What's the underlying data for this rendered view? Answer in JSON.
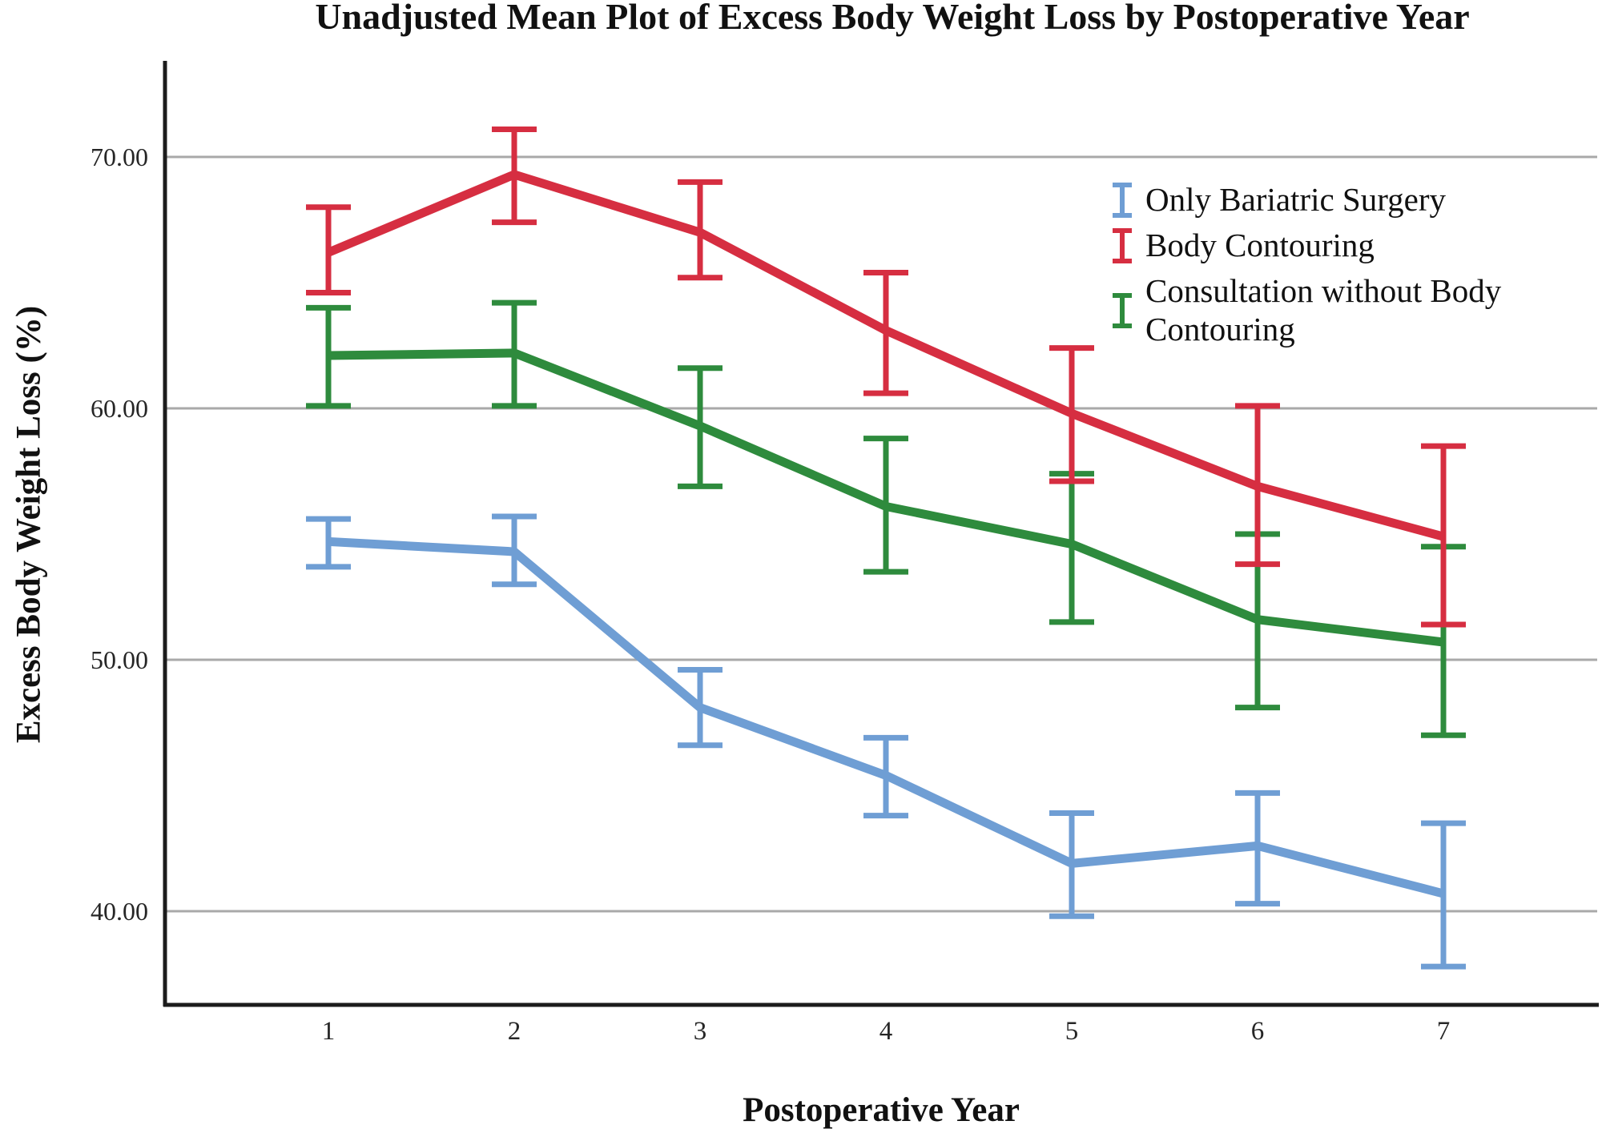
{
  "chart_data": {
    "type": "line",
    "title": "Unadjusted Mean Plot of Excess Body Weight Loss by Postoperative Year",
    "xlabel": "Postoperative Year",
    "ylabel": "Excess Body Weight Loss (%)",
    "x": [
      1,
      2,
      3,
      4,
      5,
      6,
      7
    ],
    "x_tick_labels": [
      "1",
      "2",
      "3",
      "4",
      "5",
      "6",
      "7"
    ],
    "y_tick_labels": [
      "70.00",
      "60.00",
      "50.00",
      "40.00"
    ],
    "y_tick_values": [
      70,
      60,
      50,
      40
    ],
    "ylim": [
      36,
      74
    ],
    "grid": "horizontal",
    "gridline_color": "#a9a9a9",
    "axis_color": "#1c1c1c",
    "legend_position": "upper-right-inside",
    "error_bars": true,
    "series": [
      {
        "name": "Only Bariatric Surgery",
        "color": "#6f9ed4",
        "values": [
          54.7,
          54.3,
          48.1,
          45.4,
          41.9,
          42.6,
          40.7
        ],
        "ci_low": [
          53.7,
          53.0,
          46.6,
          43.8,
          39.8,
          40.3,
          37.8
        ],
        "ci_high": [
          55.6,
          55.7,
          49.6,
          46.9,
          43.9,
          44.7,
          43.5
        ]
      },
      {
        "name": "Body Contouring",
        "color": "#d62e41",
        "values": [
          66.2,
          69.3,
          67.0,
          63.1,
          59.8,
          56.9,
          54.9
        ],
        "ci_low": [
          64.6,
          67.4,
          65.2,
          60.6,
          57.1,
          53.8,
          51.4
        ],
        "ci_high": [
          68.0,
          71.1,
          69.0,
          65.4,
          62.4,
          60.1,
          58.5
        ]
      },
      {
        "name": "Consultation without Body Contouring",
        "color": "#2e8b3d",
        "values": [
          62.1,
          62.2,
          59.3,
          56.1,
          54.6,
          51.6,
          50.7
        ],
        "ci_low": [
          60.1,
          60.1,
          56.9,
          53.5,
          51.5,
          48.1,
          47.0
        ],
        "ci_high": [
          64.0,
          64.2,
          61.6,
          58.8,
          57.4,
          55.0,
          54.5
        ]
      }
    ]
  }
}
